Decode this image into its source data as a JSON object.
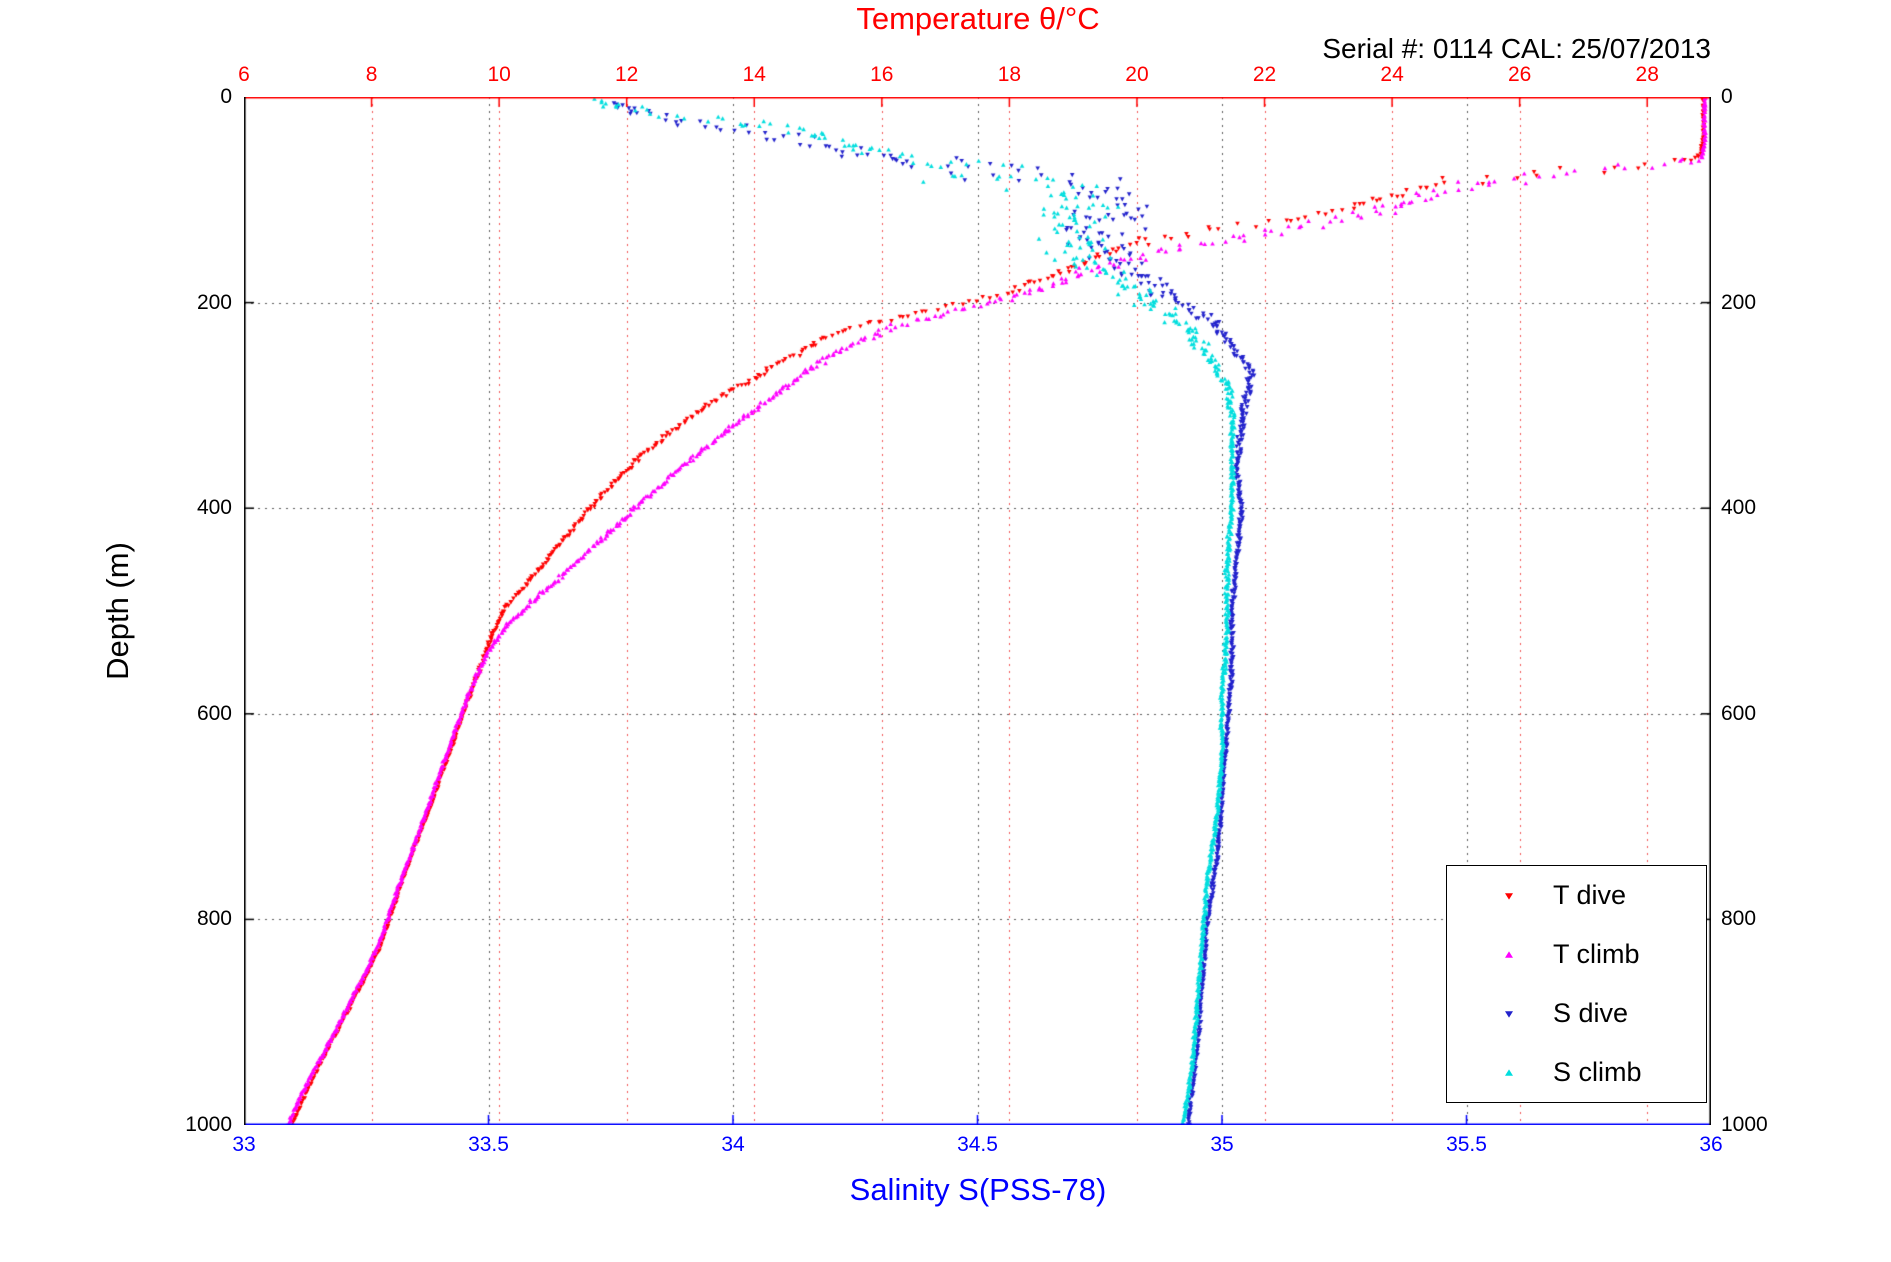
{
  "chart_data": {
    "type": "scatter",
    "title": "Temperature θ/°C",
    "title_color": "#ff0000",
    "annotation": "Serial #: 0114  CAL: 25/07/2013",
    "axes": {
      "top_x": {
        "label": "Temperature θ/°C",
        "unit": "°C",
        "range": [
          6,
          29
        ],
        "ticks": [
          6,
          8,
          10,
          12,
          14,
          16,
          18,
          20,
          22,
          24,
          26,
          28
        ],
        "tick_labels": [
          "6",
          "8",
          "10",
          "12",
          "14",
          "16",
          "18",
          "20",
          "22",
          "24",
          "26",
          "28"
        ],
        "color": "#ff0000"
      },
      "bottom_x": {
        "label": "Salinity S(PSS-78)",
        "unit": "PSS-78",
        "range": [
          33,
          36
        ],
        "ticks": [
          33,
          33.5,
          34,
          34.5,
          35,
          35.5,
          36
        ],
        "tick_labels": [
          "33",
          "33.5",
          "34",
          "34.5",
          "35",
          "35.5",
          "36"
        ],
        "color": "#0000ff"
      },
      "left_y": {
        "label": "Depth (m)",
        "unit": "m",
        "range": [
          0,
          1000
        ],
        "reversed": true,
        "ticks": [
          0,
          200,
          400,
          600,
          800,
          1000
        ],
        "tick_labels": [
          "0",
          "200",
          "400",
          "600",
          "800",
          "1000"
        ],
        "color": "#000000"
      },
      "right_y": {
        "label": "",
        "range": [
          0,
          1000
        ],
        "reversed": true,
        "ticks": [
          0,
          200,
          400,
          600,
          800,
          1000
        ],
        "tick_labels": [
          "0",
          "200",
          "400",
          "600",
          "800",
          "1000"
        ],
        "color": "#000000"
      }
    },
    "grid": {
      "style": "dotted",
      "temp_grid_color": "#f05555",
      "main_grid_color": "#5a5a5a"
    },
    "legend": {
      "position": "bottom-right",
      "entries": [
        {
          "label": "T dive",
          "color": "#ff0000",
          "marker": "triangle-down"
        },
        {
          "label": "T climb",
          "color": "#ff00ff",
          "marker": "triangle-up"
        },
        {
          "label": "S dive",
          "color": "#2222cc",
          "marker": "triangle-down"
        },
        {
          "label": "S climb",
          "color": "#00dede",
          "marker": "triangle-up"
        }
      ]
    },
    "series": [
      {
        "name": "T dive",
        "axis": "top_x",
        "color": "#ff0000",
        "marker": "triangle-down",
        "n_points": 620,
        "points": [
          [
            28.88,
            0,
            0.02
          ],
          [
            28.88,
            30,
            0.02
          ],
          [
            28.85,
            55,
            0.03
          ],
          [
            28.7,
            62,
            0.05
          ],
          [
            27.8,
            68,
            0.3
          ],
          [
            26.5,
            74,
            0.35
          ],
          [
            25.0,
            82,
            0.3
          ],
          [
            24.0,
            95,
            0.2
          ],
          [
            23.2,
            110,
            0.15
          ],
          [
            22.2,
            122,
            0.2
          ],
          [
            21.0,
            130,
            0.25
          ],
          [
            20.2,
            140,
            0.2
          ],
          [
            19.5,
            152,
            0.12
          ],
          [
            19.0,
            165,
            0.1
          ],
          [
            18.5,
            178,
            0.08
          ],
          [
            18.0,
            190,
            0.08
          ],
          [
            17.3,
            200,
            0.08
          ],
          [
            16.5,
            210,
            0.1
          ],
          [
            15.8,
            222,
            0.1
          ],
          [
            15.1,
            235,
            0.08
          ],
          [
            14.7,
            250,
            0.06
          ],
          [
            14.3,
            262,
            0.05
          ],
          [
            13.9,
            278,
            0.05
          ],
          [
            13.4,
            295,
            0.05
          ],
          [
            13.0,
            312,
            0.04
          ],
          [
            12.6,
            330,
            0.04
          ],
          [
            12.2,
            350,
            0.04
          ],
          [
            11.85,
            372,
            0.04
          ],
          [
            11.5,
            395,
            0.035
          ],
          [
            11.15,
            420,
            0.035
          ],
          [
            10.8,
            447,
            0.03
          ],
          [
            10.45,
            472,
            0.03
          ],
          [
            10.1,
            496,
            0.03
          ],
          [
            9.9,
            520,
            0.025
          ],
          [
            9.75,
            548,
            0.025
          ],
          [
            9.55,
            580,
            0.025
          ],
          [
            9.35,
            615,
            0.02
          ],
          [
            9.15,
            650,
            0.02
          ],
          [
            8.95,
            685,
            0.02
          ],
          [
            8.75,
            718,
            0.02
          ],
          [
            8.55,
            750,
            0.02
          ],
          [
            8.4,
            778,
            0.02
          ],
          [
            8.25,
            805,
            0.02
          ],
          [
            8.1,
            832,
            0.02
          ],
          [
            7.85,
            862,
            0.02
          ],
          [
            7.6,
            892,
            0.02
          ],
          [
            7.35,
            922,
            0.02
          ],
          [
            7.1,
            952,
            0.02
          ],
          [
            6.9,
            978,
            0.02
          ],
          [
            6.75,
            1000,
            0.02
          ]
        ]
      },
      {
        "name": "T climb",
        "axis": "top_x",
        "color": "#ff00ff",
        "marker": "triangle-up",
        "n_points": 760,
        "points": [
          [
            28.9,
            0,
            0.02
          ],
          [
            28.9,
            40,
            0.02
          ],
          [
            28.85,
            60,
            0.03
          ],
          [
            28.3,
            66,
            0.2
          ],
          [
            27.0,
            72,
            0.3
          ],
          [
            25.8,
            80,
            0.3
          ],
          [
            24.8,
            92,
            0.25
          ],
          [
            24.1,
            105,
            0.2
          ],
          [
            23.4,
            118,
            0.3
          ],
          [
            22.4,
            128,
            0.3
          ],
          [
            21.4,
            138,
            0.3
          ],
          [
            20.5,
            148,
            0.25
          ],
          [
            19.8,
            158,
            0.2
          ],
          [
            19.2,
            170,
            0.15
          ],
          [
            18.7,
            182,
            0.12
          ],
          [
            18.2,
            192,
            0.1
          ],
          [
            17.6,
            202,
            0.1
          ],
          [
            16.9,
            212,
            0.1
          ],
          [
            16.2,
            224,
            0.1
          ],
          [
            15.6,
            238,
            0.08
          ],
          [
            15.2,
            252,
            0.06
          ],
          [
            14.85,
            266,
            0.06
          ],
          [
            14.5,
            282,
            0.05
          ],
          [
            14.1,
            300,
            0.05
          ],
          [
            13.7,
            318,
            0.05
          ],
          [
            13.3,
            338,
            0.045
          ],
          [
            12.9,
            358,
            0.045
          ],
          [
            12.5,
            380,
            0.04
          ],
          [
            12.1,
            402,
            0.04
          ],
          [
            11.7,
            425,
            0.04
          ],
          [
            11.3,
            448,
            0.035
          ],
          [
            10.9,
            470,
            0.035
          ],
          [
            10.5,
            492,
            0.03
          ],
          [
            10.15,
            512,
            0.03
          ],
          [
            9.9,
            532,
            0.025
          ],
          [
            9.7,
            556,
            0.025
          ],
          [
            9.5,
            585,
            0.025
          ],
          [
            9.3,
            618,
            0.02
          ],
          [
            9.1,
            652,
            0.02
          ],
          [
            8.9,
            688,
            0.02
          ],
          [
            8.7,
            722,
            0.02
          ],
          [
            8.5,
            755,
            0.02
          ],
          [
            8.33,
            785,
            0.02
          ],
          [
            8.18,
            812,
            0.02
          ],
          [
            8.0,
            840,
            0.02
          ],
          [
            7.75,
            870,
            0.02
          ],
          [
            7.5,
            900,
            0.02
          ],
          [
            7.25,
            930,
            0.02
          ],
          [
            7.0,
            958,
            0.02
          ],
          [
            6.8,
            984,
            0.02
          ],
          [
            6.68,
            1000,
            0.02
          ]
        ]
      },
      {
        "name": "S dive",
        "axis": "bottom_x",
        "color": "#2222cc",
        "marker": "triangle-down",
        "n_points": 760,
        "points": [
          [
            33.75,
            5,
            0.02
          ],
          [
            33.8,
            15,
            0.02
          ],
          [
            33.9,
            25,
            0.03
          ],
          [
            34.05,
            35,
            0.04
          ],
          [
            34.22,
            48,
            0.04
          ],
          [
            34.3,
            58,
            0.05
          ],
          [
            34.42,
            68,
            0.08
          ],
          [
            34.62,
            80,
            0.12
          ],
          [
            34.8,
            95,
            0.12
          ],
          [
            34.78,
            110,
            0.1
          ],
          [
            34.75,
            125,
            0.1
          ],
          [
            34.72,
            140,
            0.09
          ],
          [
            34.78,
            155,
            0.08
          ],
          [
            34.82,
            170,
            0.06
          ],
          [
            34.86,
            185,
            0.04
          ],
          [
            34.92,
            200,
            0.03
          ],
          [
            34.97,
            215,
            0.02
          ],
          [
            35.0,
            230,
            0.015
          ],
          [
            35.03,
            250,
            0.012
          ],
          [
            35.06,
            265,
            0.012
          ],
          [
            35.05,
            290,
            0.01
          ],
          [
            35.04,
            320,
            0.008
          ],
          [
            35.03,
            360,
            0.006
          ],
          [
            35.04,
            400,
            0.006
          ],
          [
            35.03,
            450,
            0.005
          ],
          [
            35.02,
            500,
            0.005
          ],
          [
            35.02,
            560,
            0.005
          ],
          [
            35.01,
            620,
            0.004
          ],
          [
            35.0,
            680,
            0.004
          ],
          [
            34.99,
            740,
            0.004
          ],
          [
            34.97,
            800,
            0.004
          ],
          [
            34.96,
            860,
            0.004
          ],
          [
            34.95,
            920,
            0.004
          ],
          [
            34.93,
            1000,
            0.004
          ]
        ]
      },
      {
        "name": "S climb",
        "axis": "bottom_x",
        "color": "#00dede",
        "marker": "triangle-up",
        "n_points": 820,
        "points": [
          [
            33.72,
            2,
            0.015
          ],
          [
            33.75,
            8,
            0.02
          ],
          [
            33.82,
            15,
            0.03
          ],
          [
            33.95,
            22,
            0.04
          ],
          [
            34.08,
            30,
            0.05
          ],
          [
            34.18,
            40,
            0.05
          ],
          [
            34.25,
            50,
            0.06
          ],
          [
            34.35,
            60,
            0.08
          ],
          [
            34.5,
            72,
            0.12
          ],
          [
            34.65,
            85,
            0.13
          ],
          [
            34.72,
            100,
            0.11
          ],
          [
            34.7,
            115,
            0.1
          ],
          [
            34.68,
            130,
            0.09
          ],
          [
            34.7,
            148,
            0.07
          ],
          [
            34.74,
            165,
            0.06
          ],
          [
            34.8,
            182,
            0.05
          ],
          [
            34.86,
            200,
            0.04
          ],
          [
            34.91,
            218,
            0.03
          ],
          [
            34.95,
            238,
            0.02
          ],
          [
            34.98,
            258,
            0.015
          ],
          [
            35.01,
            280,
            0.012
          ],
          [
            35.02,
            310,
            0.008
          ],
          [
            35.02,
            350,
            0.006
          ],
          [
            35.02,
            400,
            0.006
          ],
          [
            35.01,
            460,
            0.005
          ],
          [
            35.01,
            520,
            0.005
          ],
          [
            35.0,
            580,
            0.005
          ],
          [
            35.0,
            640,
            0.004
          ],
          [
            34.99,
            700,
            0.004
          ],
          [
            34.97,
            760,
            0.004
          ],
          [
            34.96,
            820,
            0.004
          ],
          [
            34.95,
            880,
            0.004
          ],
          [
            34.94,
            940,
            0.004
          ],
          [
            34.92,
            1000,
            0.004
          ]
        ]
      }
    ]
  }
}
